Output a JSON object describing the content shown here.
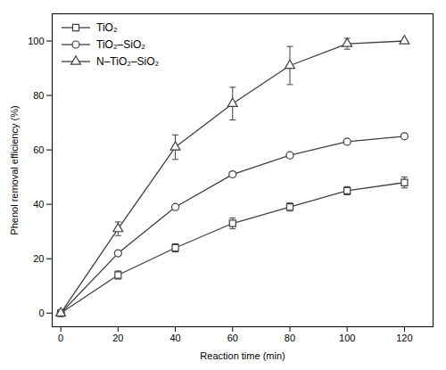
{
  "chart_data": {
    "type": "line",
    "xlabel": "Reaction time (min)",
    "ylabel": "Phenol removal efficiency (%)",
    "x": [
      0,
      20,
      40,
      60,
      80,
      100,
      120
    ],
    "xlim": [
      -3,
      130
    ],
    "ylim": [
      -5,
      110
    ],
    "xticks": [
      0,
      20,
      40,
      60,
      80,
      100,
      120
    ],
    "yticks": [
      0,
      20,
      40,
      60,
      80,
      100
    ],
    "legend": "upper left",
    "series": [
      {
        "name": "TiO₂",
        "color": "#404040",
        "marker": "square",
        "values": [
          0,
          14,
          24,
          33,
          39,
          45,
          48
        ],
        "yerr": [
          0,
          1.5,
          1.5,
          2.0,
          1.5,
          1.5,
          2.0
        ]
      },
      {
        "name": "TiO₂–SiO₂",
        "color": "#404040",
        "marker": "circle",
        "values": [
          0,
          22,
          39,
          51,
          58,
          63,
          65
        ],
        "yerr": [
          0,
          0,
          0,
          0,
          0,
          0,
          0
        ]
      },
      {
        "name": "N–TiO₂–SiO₂",
        "color": "#404040",
        "marker": "triangle",
        "values": [
          0,
          31,
          61,
          77,
          91,
          99,
          100
        ],
        "yerr": [
          0,
          2.5,
          4.5,
          6.0,
          7.0,
          2.0,
          0
        ]
      }
    ]
  }
}
